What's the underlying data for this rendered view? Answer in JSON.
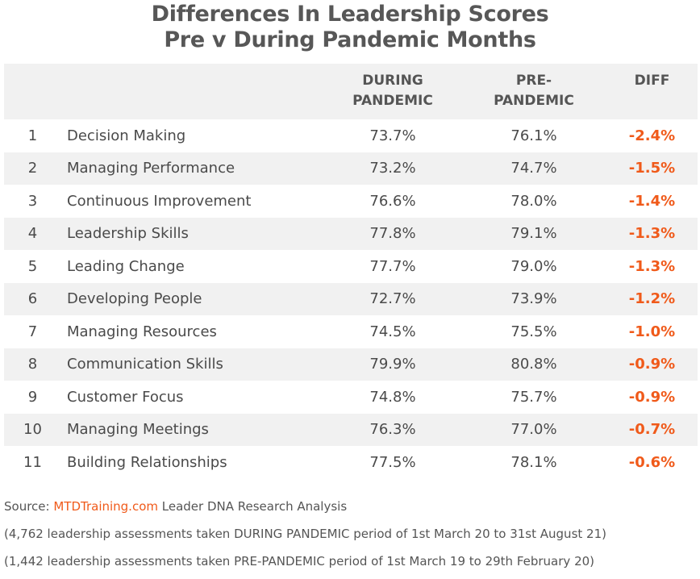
{
  "chart_data": {
    "type": "table",
    "title_line1": "Differences In Leadership Scores",
    "title_line2": "Pre v During Pandemic Months",
    "headers": {
      "during_line1": "DURING",
      "during_line2": "PANDEMIC",
      "pre_line1": "PRE-",
      "pre_line2": "PANDEMIC",
      "diff": "DIFF"
    },
    "rows": [
      {
        "num": "1",
        "name": "Decision Making",
        "during": "73.7%",
        "pre": "76.1%",
        "diff": "-2.4%"
      },
      {
        "num": "2",
        "name": "Managing Performance",
        "during": "73.2%",
        "pre": "74.7%",
        "diff": "-1.5%"
      },
      {
        "num": "3",
        "name": "Continuous Improvement",
        "during": "76.6%",
        "pre": "78.0%",
        "diff": "-1.4%"
      },
      {
        "num": "4",
        "name": "Leadership Skills",
        "during": "77.8%",
        "pre": "79.1%",
        "diff": "-1.3%"
      },
      {
        "num": "5",
        "name": "Leading Change",
        "during": "77.7%",
        "pre": "79.0%",
        "diff": "-1.3%"
      },
      {
        "num": "6",
        "name": "Developing People",
        "during": "72.7%",
        "pre": "73.9%",
        "diff": "-1.2%"
      },
      {
        "num": "7",
        "name": "Managing Resources",
        "during": "74.5%",
        "pre": "75.5%",
        "diff": "-1.0%"
      },
      {
        "num": "8",
        "name": "Communication Skills",
        "during": "79.9%",
        "pre": "80.8%",
        "diff": "-0.9%"
      },
      {
        "num": "9",
        "name": "Customer Focus",
        "during": "74.8%",
        "pre": "75.7%",
        "diff": "-0.9%"
      },
      {
        "num": "10",
        "name": "Managing Meetings",
        "during": "76.3%",
        "pre": "77.0%",
        "diff": "-0.7%"
      },
      {
        "num": "11",
        "name": "Building Relationships",
        "during": "77.5%",
        "pre": "78.1%",
        "diff": "-0.6%"
      }
    ]
  },
  "footer": {
    "source_prefix": "Source: ",
    "source_link": "MTDTraining.com",
    "source_suffix": " Leader DNA Research Analysis",
    "note1": "(4,762 leadership assessments taken DURING PANDEMIC period of 1st March 20 to 31st August 21)",
    "note2": "(1,442 leadership assessments taken PRE-PANDEMIC period of 1st March 19 to 29th February 20)"
  },
  "colors": {
    "accent": "#f05a1a",
    "stripe": "#f1f1f1",
    "title": "#575757"
  }
}
